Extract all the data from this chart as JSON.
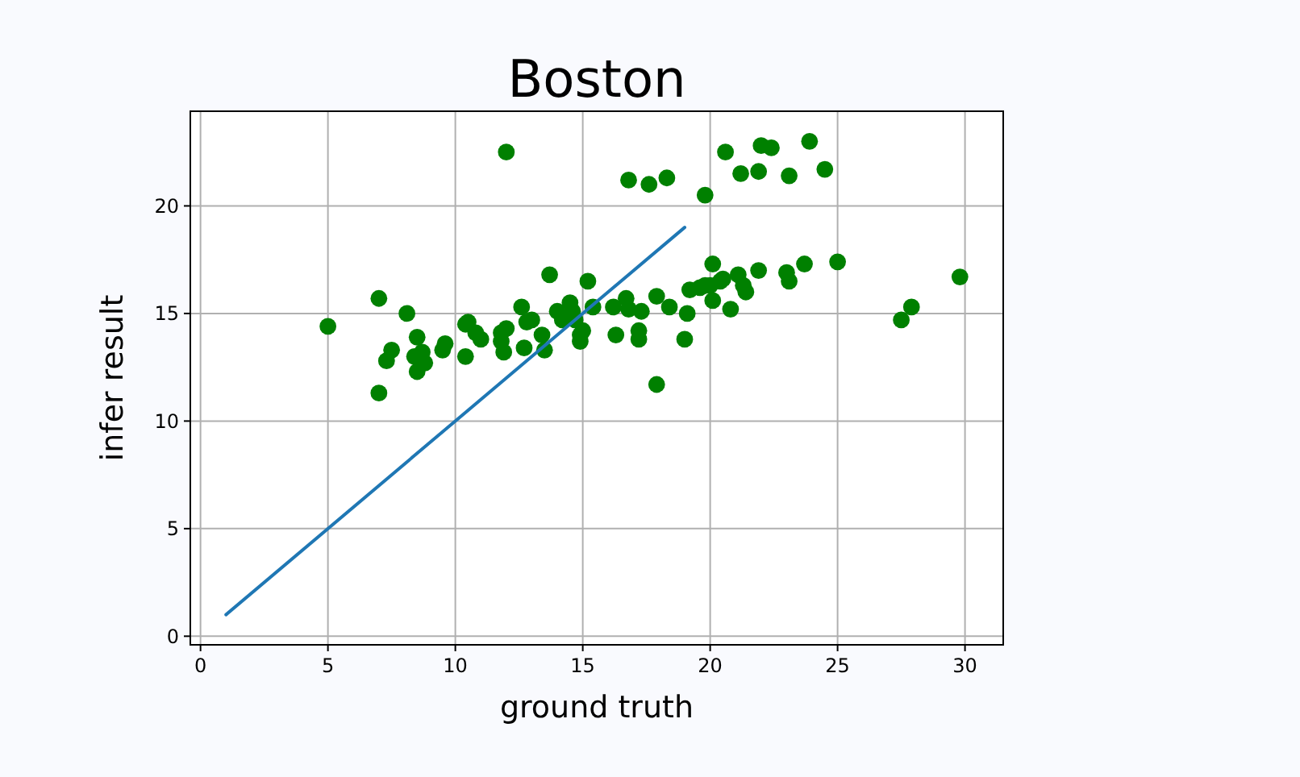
{
  "chart_data": {
    "type": "scatter",
    "title": "Boston",
    "xlabel": "ground truth",
    "ylabel": "infer result",
    "xlim": [
      -0.4,
      31.5
    ],
    "ylim": [
      -0.4,
      24.4
    ],
    "xticks": [
      0,
      5,
      10,
      15,
      20,
      25,
      30
    ],
    "yticks": [
      0,
      5,
      10,
      15,
      20
    ],
    "grid": true,
    "series": [
      {
        "color": "#008000",
        "marker": "circle",
        "x": [
          5.0,
          7.0,
          8.1,
          7.0,
          7.5,
          7.3,
          8.5,
          8.4,
          8.7,
          8.5,
          8.8,
          9.6,
          9.5,
          10.4,
          10.5,
          10.4,
          10.8,
          11.0,
          11.8,
          12.0,
          11.9,
          11.8,
          12.7,
          12.6,
          12.8,
          13.7,
          15.2,
          13.4,
          13.5,
          14.0,
          14.5,
          14.6,
          14.2,
          14.7,
          14.9,
          14.9,
          15.0,
          15.4,
          16.2,
          16.7,
          16.8,
          17.3,
          17.2,
          17.2,
          16.3,
          17.9,
          18.4,
          19.1,
          19.0,
          19.2,
          19.6,
          19.8,
          20.1,
          20.4,
          20.8,
          21.1,
          17.9,
          13.0,
          20.6,
          22.0,
          22.4,
          23.9,
          21.2,
          21.9,
          23.1,
          24.5,
          18.3,
          17.6,
          19.8,
          21.9,
          23.0,
          23.1,
          23.7,
          25.0,
          21.4,
          21.3,
          20.5,
          20.1,
          20.0,
          12.0,
          16.8,
          27.9,
          27.5,
          29.8
        ],
        "values": [
          14.4,
          15.7,
          15.0,
          11.3,
          13.3,
          12.8,
          13.9,
          13.0,
          13.2,
          12.3,
          12.7,
          13.6,
          13.3,
          14.5,
          14.6,
          13.0,
          14.1,
          13.8,
          14.1,
          14.3,
          13.2,
          13.7,
          13.4,
          15.3,
          14.6,
          16.8,
          16.5,
          14.0,
          13.3,
          15.1,
          15.5,
          15.1,
          14.7,
          14.7,
          14.0,
          13.7,
          14.2,
          15.3,
          15.3,
          15.7,
          15.2,
          15.1,
          14.2,
          13.8,
          14.0,
          15.8,
          15.3,
          15.0,
          13.8,
          16.1,
          16.2,
          16.3,
          17.3,
          16.5,
          15.2,
          16.8,
          11.7,
          14.7,
          22.5,
          22.8,
          22.7,
          23.0,
          21.5,
          21.6,
          21.4,
          21.7,
          21.3,
          21.0,
          20.5,
          17.0,
          16.9,
          16.5,
          17.3,
          17.4,
          16.0,
          16.3,
          16.6,
          15.6,
          16.3,
          22.5,
          21.2,
          15.3,
          14.7,
          16.7
        ]
      },
      {
        "type": "line",
        "color": "#1f77b4",
        "x": [
          1,
          19
        ],
        "values": [
          1,
          19
        ]
      }
    ]
  }
}
